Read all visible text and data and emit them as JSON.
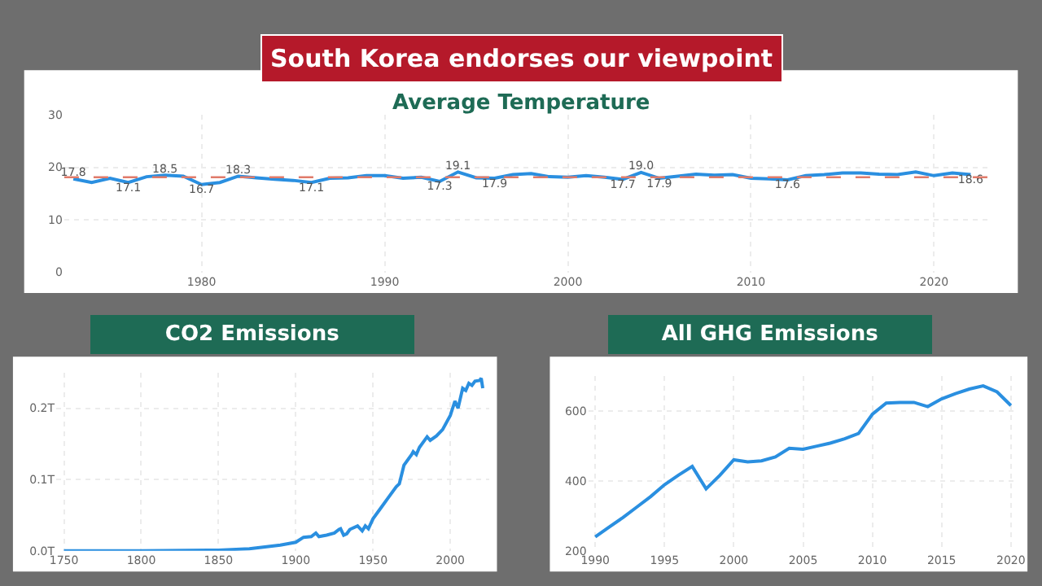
{
  "chart_data": [
    {
      "type": "other",
      "title": "South Korea endorses our viewpoint"
    },
    {
      "type": "line",
      "title": "Average Temperature",
      "grid": true,
      "marker": "none",
      "line_style": "solid",
      "x": [
        1973,
        1974,
        1975,
        1976,
        1977,
        1978,
        1979,
        1980,
        1981,
        1982,
        1983,
        1984,
        1985,
        1986,
        1987,
        1988,
        1989,
        1990,
        1991,
        1992,
        1993,
        1994,
        1995,
        1996,
        1997,
        1998,
        1999,
        2000,
        2001,
        2002,
        2003,
        2004,
        2005,
        2006,
        2007,
        2008,
        2009,
        2010,
        2011,
        2012,
        2013,
        2014,
        2015,
        2016,
        2017,
        2018,
        2019,
        2020,
        2021,
        2022
      ],
      "series": [
        {
          "color": "#2a8fe0",
          "values": [
            17.8,
            17.1,
            17.9,
            17.1,
            18.2,
            18.5,
            18.3,
            16.7,
            17.1,
            18.3,
            18.0,
            17.7,
            17.5,
            17.1,
            17.9,
            18.0,
            18.4,
            18.4,
            17.9,
            18.1,
            17.3,
            19.1,
            18.0,
            17.9,
            18.6,
            18.8,
            18.2,
            18.1,
            18.4,
            18.1,
            17.7,
            19.0,
            17.9,
            18.3,
            18.7,
            18.5,
            18.6,
            17.9,
            17.8,
            17.6,
            18.4,
            18.6,
            18.9,
            18.9,
            18.7,
            18.6,
            19.1,
            18.4,
            18.9,
            18.6
          ],
          "value_labels": [
            "17.8",
            null,
            null,
            "17.1",
            null,
            "18.5",
            null,
            "16.7",
            null,
            "18.3",
            null,
            null,
            null,
            "17.1",
            null,
            null,
            null,
            null,
            null,
            null,
            "17.3",
            "19.1",
            null,
            "17.9",
            null,
            null,
            null,
            null,
            null,
            null,
            "17.7",
            "19.0",
            "17.9",
            null,
            null,
            null,
            null,
            null,
            null,
            "17.6",
            null,
            null,
            null,
            null,
            null,
            null,
            null,
            null,
            null,
            "18.6"
          ]
        }
      ],
      "ref_lines": [
        {
          "axis": "y",
          "value": 18.1,
          "color": "#e07b6a",
          "line_style": "dashed"
        }
      ],
      "xlim": [
        1972.5,
        2023
      ],
      "xticks": [
        1980,
        1990,
        2000,
        2010,
        2020
      ],
      "ylim": [
        0,
        30
      ],
      "yticks": [
        0,
        10,
        20,
        30
      ]
    },
    {
      "type": "line",
      "title": "CO2 Emissions",
      "grid": true,
      "marker": "none",
      "line_style": "solid",
      "x": [
        1750,
        1800,
        1850,
        1870,
        1890,
        1900,
        1905,
        1910,
        1913,
        1915,
        1920,
        1925,
        1928,
        1929,
        1931,
        1933,
        1935,
        1940,
        1943,
        1945,
        1947,
        1950,
        1955,
        1960,
        1965,
        1967,
        1970,
        1975,
        1976,
        1978,
        1980,
        1985,
        1987,
        1991,
        1995,
        2000,
        2003,
        2005,
        2008,
        2010,
        2012,
        2014,
        2016,
        2019,
        2020,
        2021
      ],
      "series": [
        {
          "color": "#2a8fe0",
          "values": [
            0,
            0,
            0.001,
            0.003,
            0.008,
            0.012,
            0.019,
            0.02,
            0.025,
            0.02,
            0.022,
            0.025,
            0.03,
            0.031,
            0.022,
            0.024,
            0.03,
            0.035,
            0.028,
            0.035,
            0.031,
            0.045,
            0.06,
            0.075,
            0.09,
            0.094,
            0.12,
            0.135,
            0.139,
            0.135,
            0.145,
            0.16,
            0.155,
            0.161,
            0.17,
            0.19,
            0.21,
            0.2,
            0.228,
            0.225,
            0.235,
            0.232,
            0.238,
            0.239,
            0.242,
            0.228
          ]
        }
      ],
      "xlim": [
        1745,
        2025
      ],
      "xticks": [
        1750,
        1800,
        1850,
        1900,
        1950,
        2000
      ],
      "ylim": [
        0,
        0.25
      ],
      "yticks": [
        {
          "value": 0,
          "label": "0.0T"
        },
        {
          "value": 0.1,
          "label": "0.1T"
        },
        {
          "value": 0.2,
          "label": "0.2T"
        }
      ]
    },
    {
      "type": "line",
      "title": "All GHG Emissions",
      "grid": true,
      "marker": "none",
      "line_style": "solid",
      "x": [
        1990,
        1991,
        1992,
        1993,
        1994,
        1995,
        1996,
        1997,
        1998,
        1999,
        2000,
        2001,
        2002,
        2003,
        2004,
        2005,
        2006,
        2007,
        2008,
        2009,
        2010,
        2011,
        2012,
        2013,
        2014,
        2015,
        2016,
        2017,
        2018,
        2019,
        2020
      ],
      "series": [
        {
          "color": "#2a8fe0",
          "values": [
            240,
            268,
            295,
            325,
            355,
            389,
            416,
            441,
            377,
            416,
            460,
            454,
            457,
            468,
            493,
            490,
            499,
            508,
            520,
            535,
            590,
            622,
            624,
            624,
            612,
            634,
            649,
            662,
            671,
            654,
            615
          ]
        }
      ],
      "xlim": [
        1989.5,
        2020.5
      ],
      "xticks": [
        1990,
        1995,
        2000,
        2005,
        2010,
        2015,
        2020
      ],
      "ylim": [
        200,
        700
      ],
      "yticks": [
        200,
        400,
        600
      ]
    }
  ]
}
